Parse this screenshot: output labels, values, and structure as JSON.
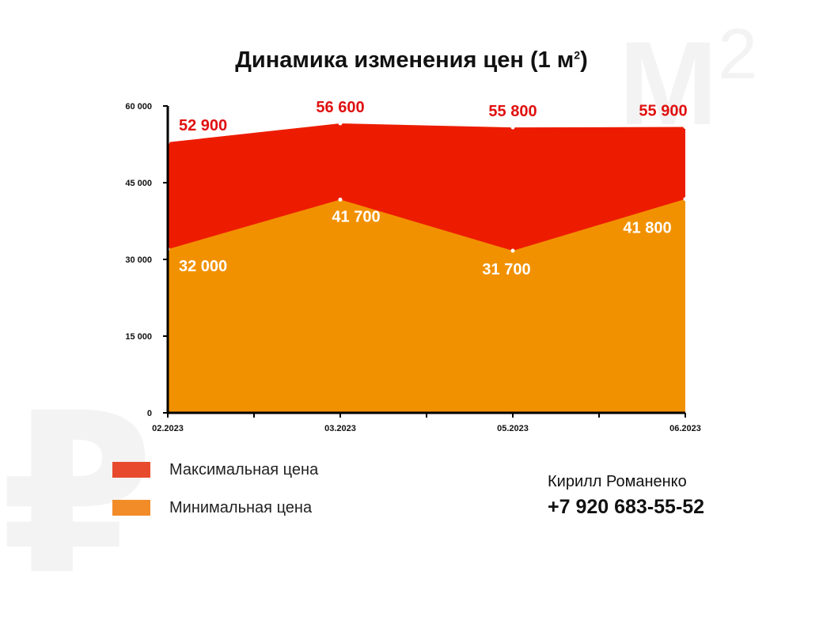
{
  "title_main": "Динамика изменения цен (1 м",
  "title_sup": "2",
  "title_end": ")",
  "watermark_m": "М",
  "watermark_sup": "2",
  "watermark_rub": "₽",
  "legend": [
    {
      "label": "Максимальная цена",
      "color": "#e84a2e"
    },
    {
      "label": "Минимальная цена",
      "color": "#f28c28"
    }
  ],
  "contact": {
    "name": "Кирилл Романенко",
    "phone": "+7 920 683-55-52"
  },
  "colors": {
    "max_area": "#ed1c00",
    "min_area": "#f29100",
    "max_label": "#e01010",
    "min_label": "#ffffff",
    "axis": "#000000"
  },
  "chart_data": {
    "type": "area",
    "title": "Динамика изменения цен (1 м²)",
    "categories": [
      "02.2023",
      "03.2023",
      "05.2023",
      "06.2023"
    ],
    "series": [
      {
        "name": "Максимальная цена",
        "values": [
          52900,
          56600,
          55800,
          55900
        ],
        "labels": [
          "52 900",
          "56 600",
          "55 800",
          "55 900"
        ]
      },
      {
        "name": "Минимальная цена",
        "values": [
          32000,
          41700,
          31700,
          41800
        ],
        "labels": [
          "32 000",
          "41 700",
          "31 700",
          "41 800"
        ]
      }
    ],
    "yticks": [
      0,
      15000,
      30000,
      45000,
      60000
    ],
    "ytick_labels": [
      "0",
      "15 000",
      "30 000",
      "45 000",
      "60 000"
    ],
    "ylim": [
      0,
      60000
    ],
    "grid": false,
    "legend_position": "bottom-left"
  }
}
